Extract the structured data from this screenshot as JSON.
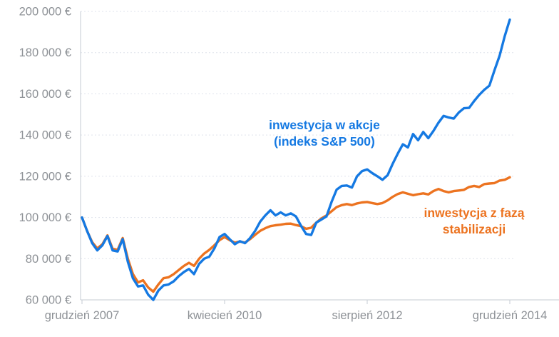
{
  "chart_data": {
    "type": "line",
    "title": "",
    "x_axis": {
      "unit": "month",
      "total_points": 85,
      "ticks": [
        {
          "label": "grudzień 2007",
          "month_index": 0
        },
        {
          "label": "kwiecień 2010",
          "month_index": 28
        },
        {
          "label": "sierpień 2012",
          "month_index": 56
        },
        {
          "label": "grudzień 2014",
          "month_index": 84
        }
      ]
    },
    "y_axis": {
      "min": 60000,
      "max": 200000,
      "step": 20000,
      "unit": "€",
      "tick_labels": [
        "60 000 €",
        "80 000 €",
        "100 000 €",
        "120 000 €",
        "140 000 €",
        "160 000 €",
        "180 000 €",
        "200 000 €"
      ],
      "grid": "dashed"
    },
    "series": [
      {
        "name": "inwestycja z fazą stabilizacji",
        "color": "#ec7320",
        "values": [
          100000,
          93500,
          88000,
          85000,
          87000,
          91300,
          84800,
          84300,
          90000,
          80000,
          72500,
          68500,
          69500,
          66000,
          64000,
          67500,
          70500,
          71000,
          72500,
          74500,
          76500,
          78000,
          76500,
          80000,
          82500,
          84300,
          86500,
          89000,
          90500,
          89000,
          87800,
          88300,
          87800,
          89500,
          91600,
          93500,
          94800,
          95800,
          96200,
          96500,
          96900,
          97000,
          96300,
          95800,
          94500,
          95000,
          97500,
          99500,
          101000,
          103000,
          105000,
          106000,
          106500,
          106000,
          106800,
          107300,
          107500,
          107000,
          106500,
          107000,
          108300,
          110000,
          111400,
          112200,
          111500,
          110800,
          111300,
          111700,
          111200,
          112800,
          113800,
          112800,
          112200,
          112800,
          113100,
          113400,
          114800,
          115300,
          114800,
          116200,
          116500,
          116700,
          117900,
          118300,
          119500
        ]
      },
      {
        "name": "inwestycja w akcje (indeks S&P 500)",
        "color": "#1579e2",
        "values": [
          100000,
          93500,
          87500,
          84000,
          86500,
          91000,
          84000,
          83500,
          89500,
          78500,
          70500,
          66500,
          67000,
          62500,
          60000,
          64500,
          67000,
          67500,
          69000,
          71500,
          73500,
          75000,
          72500,
          77500,
          80000,
          81000,
          85000,
          90500,
          92000,
          89500,
          87000,
          88500,
          87500,
          90000,
          93500,
          98000,
          101000,
          103500,
          101000,
          102500,
          101000,
          102000,
          100500,
          96000,
          92000,
          91500,
          97500,
          99000,
          100500,
          107500,
          113500,
          115300,
          115500,
          114500,
          120000,
          122500,
          123300,
          121500,
          120000,
          118300,
          120500,
          126000,
          131000,
          135500,
          134000,
          140500,
          137500,
          141500,
          138500,
          142000,
          146000,
          149300,
          148500,
          148000,
          151000,
          153000,
          153200,
          156500,
          159500,
          162000,
          164000,
          171500,
          178500,
          188000,
          196000
        ]
      }
    ],
    "annotations": [
      {
        "series": "stocks",
        "lines": [
          "inwestycja w akcje",
          "(indeks S&P 500)"
        ],
        "color": "#1579e2"
      },
      {
        "series": "stabilization",
        "lines": [
          "inwestycja z fazą",
          "stabilizacji"
        ],
        "color": "#ec7320"
      }
    ],
    "legend_position": "inline-labels",
    "colors": {
      "grid": "#dfe3ec",
      "axis": "#c6cbd3",
      "axis_text": "#8d9196",
      "background": "#ffffff"
    }
  }
}
